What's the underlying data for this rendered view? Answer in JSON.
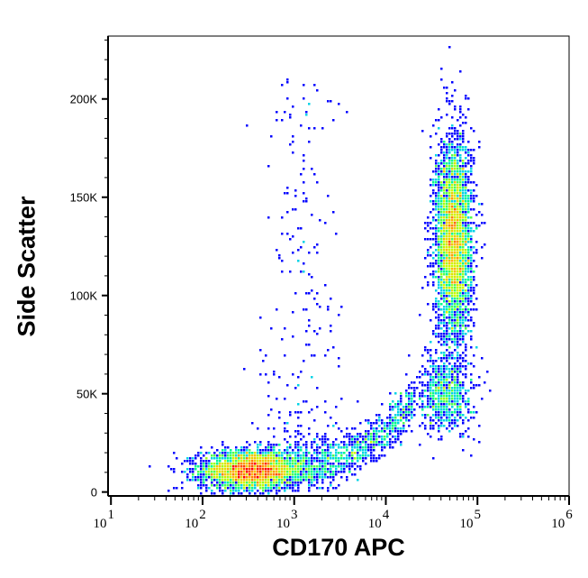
{
  "chart_data": {
    "type": "scatter",
    "subtype": "density-dot-plot",
    "xlabel": "CD170 APC",
    "ylabel": "Side Scatter",
    "xscale": "log",
    "xlim": [
      9.3,
      1000000
    ],
    "ylim": [
      -2000,
      232000
    ],
    "x_ticks": [
      {
        "value": 10,
        "base": "10",
        "exp": "1"
      },
      {
        "value": 100,
        "base": "10",
        "exp": "2"
      },
      {
        "value": 1000,
        "base": "10",
        "exp": "3"
      },
      {
        "value": 10000,
        "base": "10",
        "exp": "4"
      },
      {
        "value": 100000,
        "base": "10",
        "exp": "5"
      },
      {
        "value": 1000000,
        "base": "10",
        "exp": "6"
      }
    ],
    "y_ticks": [
      {
        "value": 0,
        "label": "0"
      },
      {
        "value": 50000,
        "label": "50K"
      },
      {
        "value": 100000,
        "label": "100K"
      },
      {
        "value": 150000,
        "label": "150K"
      },
      {
        "value": 200000,
        "label": "200K"
      }
    ],
    "grid": false,
    "colormap": [
      "#0000ff",
      "#00c8ff",
      "#00ff80",
      "#c8ff00",
      "#ffb400",
      "#ff0000"
    ],
    "populations": [
      {
        "x_center": 350,
        "x_spread_decades": 0.28,
        "y_center": 11000,
        "y_spread": 5000,
        "events": 3200
      },
      {
        "x_center": 55000,
        "x_spread_decades": 0.1,
        "y_center": 128000,
        "y_spread": 26000,
        "events": 3600
      },
      {
        "x_center": 45000,
        "x_spread_decades": 0.15,
        "y_center": 50000,
        "y_spread": 10000,
        "events": 700
      },
      {
        "x_from": 1000,
        "x_to": 20000,
        "y_from": 12000,
        "y_to": 45000,
        "events": 900
      },
      {
        "x_center": 1200,
        "x_spread_decades": 0.25,
        "y_from": 20000,
        "y_to": 210000,
        "events": 250
      }
    ]
  }
}
